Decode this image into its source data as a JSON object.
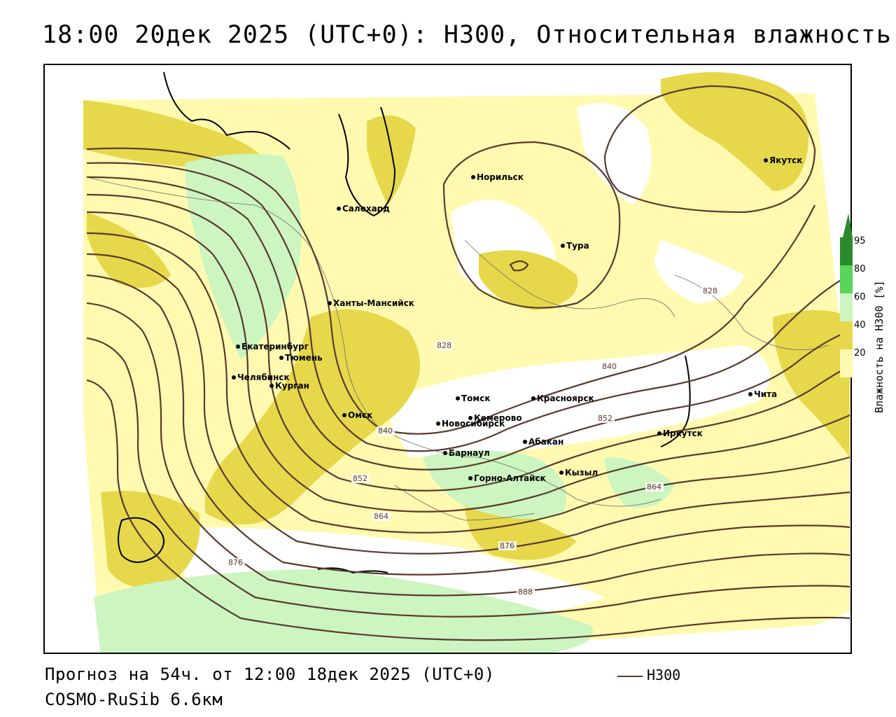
{
  "title": "18:00 20дек 2025 (UTC+0): H300, Относительная влажность",
  "footer": {
    "forecast": "Прогноз на 54ч. от 12:00 18дек 2025 (UTC+0)",
    "model": "COSMO-RuSib 6.6км"
  },
  "legend": {
    "series_label": "H300",
    "line_color": "#5a3a2e"
  },
  "colorbar": {
    "title": "Влажность на H300 [%]",
    "ticks": [
      "20",
      "40",
      "60",
      "80",
      "95"
    ],
    "colors": {
      "c20_40": "#fffab0",
      "c40_60": "#e6d84a",
      "c60_80": "#ccf5c0",
      "c80_95": "#5ad45a",
      "c95": "#2a8a2a"
    }
  },
  "cities": [
    {
      "name": "Якутск"
    },
    {
      "name": "Норильск"
    },
    {
      "name": "Салехард"
    },
    {
      "name": "Тура"
    },
    {
      "name": "Ханты-Мансийск"
    },
    {
      "name": "Екатеринбург"
    },
    {
      "name": "Тюмень"
    },
    {
      "name": "Челябинск"
    },
    {
      "name": "Курган"
    },
    {
      "name": "Омск"
    },
    {
      "name": "Новосибирск"
    },
    {
      "name": "Томск"
    },
    {
      "name": "Кемерово"
    },
    {
      "name": "Красноярск"
    },
    {
      "name": "Абакан"
    },
    {
      "name": "Барнаул"
    },
    {
      "name": "Горно-Алтайск"
    },
    {
      "name": "Кызыл"
    },
    {
      "name": "Иркутск"
    },
    {
      "name": "Чита"
    }
  ],
  "contour_labels": [
    "828",
    "828",
    "840",
    "840",
    "852",
    "852",
    "864",
    "864",
    "876",
    "876",
    "888"
  ]
}
